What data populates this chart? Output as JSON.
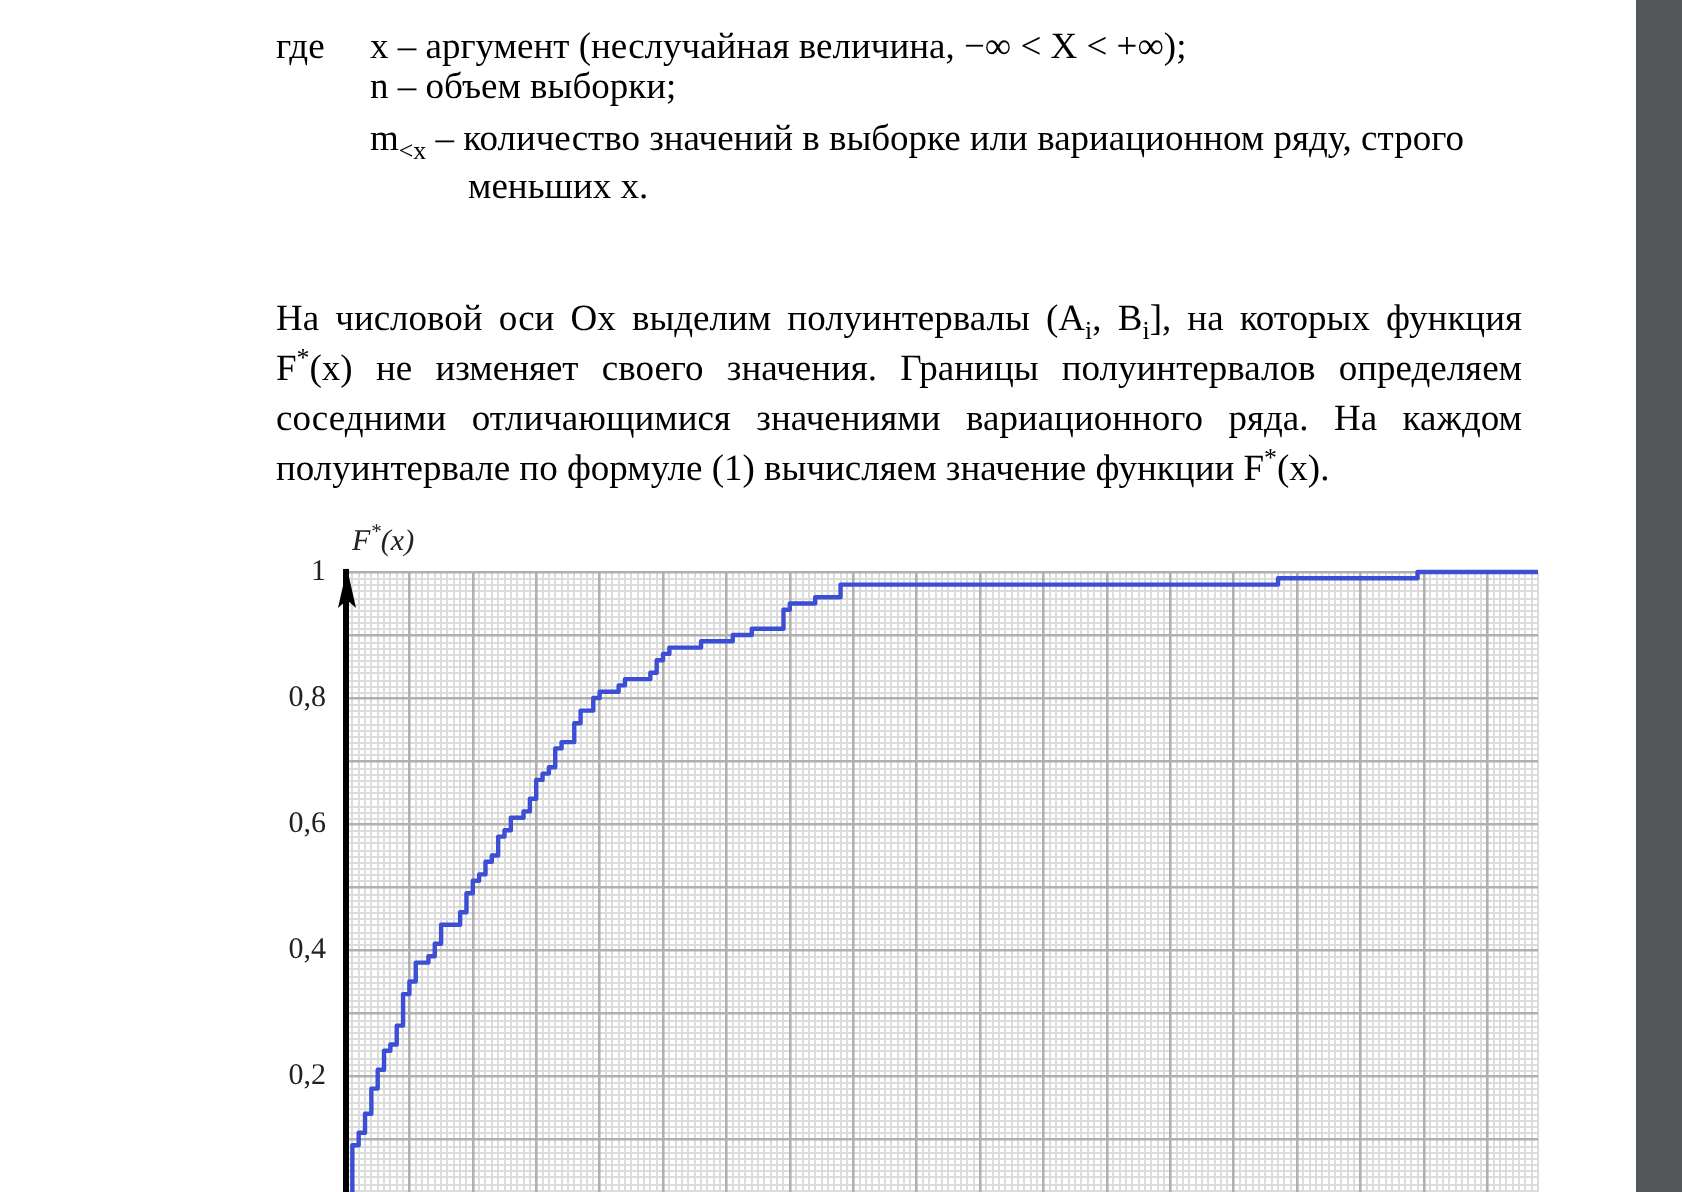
{
  "chart_data": {
    "type": "step",
    "ylabel": "F$^{*}$(x)",
    "annotations": [
      "где",
      "x – аргумент (неслучайная величина, −∞ < X < +∞);",
      "n – объем выборки;",
      "m$_{<x}$ – количество значений в выборке или вариационном ряду, строго меньших x.",
      "На числовой оси Ox выделим полуинтервалы (A$_{i}$, B$_{i}$], на которых функция F$^{*}$(x) не изменяет своего значения. Границы полуинтервалов определяем соседними отличающимися значениями вариационного ряда. На каждом полуинтервале по формуле (1) вычисляем значение функции F$^{*}$(x)."
    ],
    "categories": [
      null,
      null,
      null,
      null,
      null,
      null,
      null,
      null,
      null,
      null,
      null,
      null,
      null,
      null,
      null,
      null,
      null,
      null,
      null,
      null,
      null,
      null,
      null,
      null,
      null,
      null,
      null,
      null,
      null,
      null,
      null,
      null,
      null,
      null,
      null,
      null,
      null,
      null,
      null,
      null,
      null,
      null,
      null,
      null,
      null,
      null,
      null,
      null,
      null,
      null,
      null,
      null,
      null,
      null,
      null,
      null,
      null,
      null,
      null,
      null,
      null,
      null,
      null,
      null,
      null,
      null,
      null,
      null,
      null,
      null,
      null,
      null,
      null,
      null,
      null,
      null,
      null,
      null,
      null,
      null,
      null,
      null,
      null,
      null,
      null,
      null,
      null,
      null,
      null,
      null,
      null,
      null,
      null,
      null,
      null,
      null,
      null,
      null,
      null,
      null,
      null,
      null,
      null,
      null,
      null,
      null,
      null,
      null,
      null,
      null,
      null,
      null,
      null,
      null,
      null,
      null,
      null,
      null,
      null,
      null,
      null,
      null,
      null,
      null,
      null,
      null,
      null,
      null,
      null,
      null,
      null,
      null,
      null,
      null,
      null,
      null,
      null,
      null,
      null,
      null,
      null,
      null,
      null,
      null,
      null,
      null,
      null,
      null,
      null,
      null,
      null,
      null,
      null,
      null,
      null,
      null,
      null,
      null,
      null,
      null,
      null,
      null,
      null,
      null,
      null,
      null,
      null,
      null,
      null,
      null,
      null,
      null,
      null,
      null,
      null,
      null,
      null,
      null,
      null,
      null,
      null,
      null,
      null,
      null,
      null,
      null,
      null,
      null,
      null
    ],
    "values": [
      0,
      0.09,
      0.11,
      0.14,
      0.18,
      0.21,
      0.24,
      0.25,
      0.28,
      0.33,
      0.35,
      0.38,
      0.38,
      0.39,
      0.41,
      0.44,
      0.44,
      0.44,
      0.46,
      0.49,
      0.51,
      0.52,
      0.54,
      0.55,
      0.58,
      0.59,
      0.61,
      0.61,
      0.62,
      0.64,
      0.67,
      0.68,
      0.69,
      0.72,
      0.73,
      0.73,
      0.76,
      0.78,
      0.78,
      0.8,
      0.81,
      0.81,
      0.81,
      0.82,
      0.83,
      0.83,
      0.83,
      0.83,
      0.84,
      0.86,
      0.87,
      0.88,
      0.88,
      0.88,
      0.88,
      0.88,
      0.89,
      0.89,
      0.89,
      0.89,
      0.89,
      0.9,
      0.9,
      0.9,
      0.91,
      0.91,
      0.91,
      0.91,
      0.91,
      0.94,
      0.95,
      0.95,
      0.95,
      0.95,
      0.96,
      0.96,
      0.96,
      0.96,
      0.98,
      0.98,
      0.98,
      0.98,
      0.98,
      0.98,
      0.98,
      0.98,
      0.98,
      0.98,
      0.98,
      0.98,
      0.98,
      0.98,
      0.98,
      0.98,
      0.98,
      0.98,
      0.98,
      0.98,
      0.98,
      0.98,
      0.98,
      0.98,
      0.98,
      0.98,
      0.98,
      0.98,
      0.98,
      0.98,
      0.98,
      0.98,
      0.98,
      0.98,
      0.98,
      0.98,
      0.98,
      0.98,
      0.98,
      0.98,
      0.98,
      0.98,
      0.98,
      0.98,
      0.98,
      0.98,
      0.98,
      0.98,
      0.98,
      0.98,
      0.98,
      0.98,
      0.98,
      0.98,
      0.98,
      0.98,
      0.98,
      0.98,
      0.98,
      0.98,
      0.98,
      0.98,
      0.98,
      0.98,
      0.98,
      0.98,
      0.98,
      0.98,
      0.98,
      0.99,
      0.99,
      0.99,
      0.99,
      0.99,
      0.99,
      0.99,
      0.99,
      0.99,
      0.99,
      0.99,
      0.99,
      0.99,
      0.99,
      0.99,
      0.99,
      0.99,
      0.99,
      0.99,
      0.99,
      0.99,
      0.99,
      1,
      1,
      1,
      1,
      1,
      1,
      1,
      1,
      1,
      1,
      1,
      1,
      1,
      1,
      1,
      1,
      1,
      1,
      1,
      1
    ],
    "color": "#3c4fd4",
    "ylim": [
      0,
      1
    ],
    "yticks": [
      {
        "value": 0.1,
        "label": null
      },
      {
        "value": 0.2,
        "label": "0,2"
      },
      {
        "value": 0.3,
        "label": null
      },
      {
        "value": 0.4,
        "label": "0,4"
      },
      {
        "value": 0.5,
        "label": null
      },
      {
        "value": 0.6,
        "label": "0,6"
      },
      {
        "value": 0.7,
        "label": null
      },
      {
        "value": 0.8,
        "label": "0,8"
      },
      {
        "value": 0.9,
        "label": null
      },
      1
    ],
    "grid": true,
    "marker": "none",
    "tick_labels": "y"
  }
}
